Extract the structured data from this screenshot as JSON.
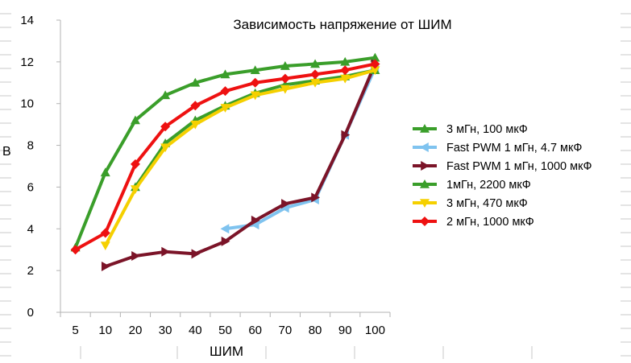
{
  "chart_data": {
    "type": "line",
    "title": "Зависимость напряжение от ШИМ",
    "xlabel": "ШИМ",
    "ylabel": "В",
    "categories": [
      "5",
      "10",
      "20",
      "30",
      "40",
      "50",
      "60",
      "70",
      "80",
      "90",
      "100"
    ],
    "ylim": [
      0,
      14
    ],
    "yticks": [
      "0",
      "2",
      "4",
      "6",
      "8",
      "10",
      "12",
      "14"
    ],
    "grid": false,
    "legend_position": "right",
    "series": [
      {
        "name": "3 мГн, 100 мкФ",
        "color": "#3a9e2a",
        "marker": "triangle-up",
        "values": [
          3.1,
          6.7,
          9.2,
          10.4,
          11.0,
          11.4,
          11.6,
          11.8,
          11.9,
          12.0,
          12.2
        ]
      },
      {
        "name": "Fast PWM 1 мГн, 4.7 мкФ",
        "color": "#7fc3ef",
        "marker": "triangle-left",
        "values": [
          null,
          null,
          null,
          null,
          null,
          4.0,
          4.2,
          5.0,
          5.4,
          8.5,
          11.7
        ]
      },
      {
        "name": "Fast PWM 1 мГн, 1000 мкФ",
        "color": "#7b1428",
        "marker": "triangle-right",
        "values": [
          null,
          2.2,
          2.7,
          2.9,
          2.8,
          3.4,
          4.4,
          5.2,
          5.5,
          8.5,
          11.9
        ]
      },
      {
        "name": "1мГн, 2200 мкФ",
        "color": "#3a9e2a",
        "marker": "triangle-up",
        "values": [
          null,
          null,
          6.0,
          8.1,
          9.2,
          9.9,
          10.5,
          10.9,
          11.1,
          11.3,
          11.6
        ]
      },
      {
        "name": "3 мГн, 470 мкФ",
        "color": "#f5d000",
        "marker": "triangle-down",
        "values": [
          null,
          3.2,
          5.9,
          7.9,
          9.0,
          9.8,
          10.4,
          10.7,
          11.0,
          11.2,
          11.6
        ]
      },
      {
        "name": "2 мГн, 1000 мкФ",
        "color": "#ee1111",
        "marker": "diamond",
        "values": [
          3.0,
          3.8,
          7.1,
          8.9,
          9.9,
          10.6,
          11.0,
          11.2,
          11.4,
          11.6,
          11.9
        ]
      }
    ]
  }
}
